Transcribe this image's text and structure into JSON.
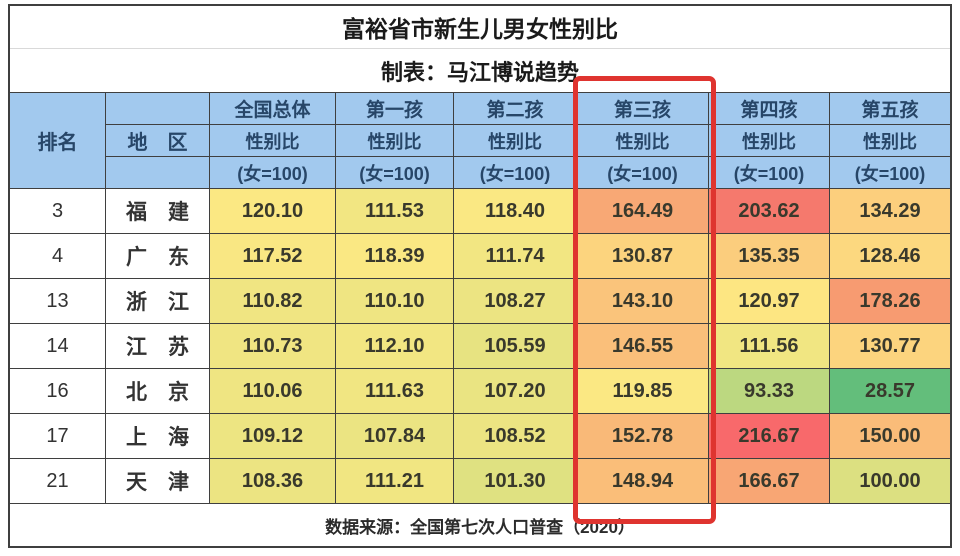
{
  "title": "富裕省市新生儿男女性别比",
  "subtitle": "制表：马江博说趋势",
  "source_note": "数据来源：全国第七次人口普查（2020）",
  "header": {
    "rank_label": "排名",
    "region_label": "地　区",
    "groups": [
      "全国总体",
      "第一孩",
      "第二孩",
      "第三孩",
      "第四孩",
      "第五孩"
    ],
    "sub_label": "性别比",
    "unit_label": "(女=100)"
  },
  "highlight": {
    "target_column": "第三孩",
    "box_color": "#df342f"
  },
  "theme": {
    "header_bg": "#a2c9ee",
    "header_text": "#274668",
    "grid_line": "#3f3f3f",
    "number_text": "#39392c",
    "scale_low_color": "#63be7b",
    "scale_mid_color": "#ffeb84",
    "scale_high_color": "#f8696b"
  },
  "rows": [
    {
      "rank": "3",
      "region": "福　建",
      "values": [
        "120.10",
        "111.53",
        "118.40",
        "164.49",
        "203.62",
        "134.29"
      ],
      "cell_colors": [
        "#fbe883",
        "#f2e682",
        "#fae883",
        "#f8a875",
        "#f5796d",
        "#fccf7d"
      ]
    },
    {
      "rank": "4",
      "region": "广　东",
      "values": [
        "117.52",
        "118.39",
        "111.74",
        "130.87",
        "135.35",
        "128.46"
      ],
      "cell_colors": [
        "#f9e783",
        "#fae883",
        "#f2e682",
        "#fcd47e",
        "#fbcd7d",
        "#fcd87f"
      ]
    },
    {
      "rank": "13",
      "region": "浙　江",
      "values": [
        "110.82",
        "110.10",
        "108.27",
        "143.10",
        "120.97",
        "178.26"
      ],
      "cell_colors": [
        "#f0e582",
        "#efe582",
        "#ece482",
        "#fac47b",
        "#fde682",
        "#f79b71"
      ]
    },
    {
      "rank": "14",
      "region": "江　苏",
      "values": [
        "110.73",
        "112.10",
        "105.59",
        "146.55",
        "111.56",
        "130.77"
      ],
      "cell_colors": [
        "#f0e582",
        "#f2e682",
        "#e7e381",
        "#fabf7a",
        "#f1e682",
        "#fcd47e"
      ]
    },
    {
      "rank": "16",
      "region": "北　京",
      "values": [
        "110.06",
        "111.63",
        "107.20",
        "119.85",
        "93.33",
        "28.57"
      ],
      "cell_colors": [
        "#efe582",
        "#f1e682",
        "#eae482",
        "#fbe883",
        "#bcd880",
        "#63be7b"
      ]
    },
    {
      "rank": "17",
      "region": "上　海",
      "values": [
        "109.12",
        "107.84",
        "108.52",
        "152.78",
        "216.67",
        "150.00"
      ],
      "cell_colors": [
        "#ede582",
        "#ebe482",
        "#ece482",
        "#f9b978",
        "#f8696b",
        "#fabc79"
      ]
    },
    {
      "rank": "21",
      "region": "天　津",
      "values": [
        "108.36",
        "111.21",
        "101.30",
        "148.94",
        "166.67",
        "100.00"
      ],
      "cell_colors": [
        "#ece482",
        "#f1e682",
        "#dfe181",
        "#fabe79",
        "#f8a674",
        "#dce081"
      ]
    }
  ],
  "chart_data": {
    "type": "table",
    "title": "富裕省市新生儿男女性别比",
    "subtitle": "制表：马江博说趋势",
    "columns": [
      "排名",
      "地区",
      "全国总体性别比(女=100)",
      "第一孩性别比(女=100)",
      "第二孩性别比(女=100)",
      "第三孩性别比(女=100)",
      "第四孩性别比(女=100)",
      "第五孩性别比(女=100)"
    ],
    "rows": [
      [
        3,
        "福建",
        120.1,
        111.53,
        118.4,
        164.49,
        203.62,
        134.29
      ],
      [
        4,
        "广东",
        117.52,
        118.39,
        111.74,
        130.87,
        135.35,
        128.46
      ],
      [
        13,
        "浙江",
        110.82,
        110.1,
        108.27,
        143.1,
        120.97,
        178.26
      ],
      [
        14,
        "江苏",
        110.73,
        112.1,
        105.59,
        146.55,
        111.56,
        130.77
      ],
      [
        16,
        "北京",
        110.06,
        111.63,
        107.2,
        119.85,
        93.33,
        28.57
      ],
      [
        17,
        "上海",
        109.12,
        107.84,
        108.52,
        152.78,
        216.67,
        150.0
      ],
      [
        21,
        "天津",
        108.36,
        111.21,
        101.3,
        148.94,
        166.67,
        100.0
      ]
    ],
    "highlighted_column": "第三孩性别比(女=100)",
    "cell_color_scale": {
      "low": "#63be7b",
      "mid": "#ffeb84",
      "high": "#f8696b",
      "meaning": "green=low ratio, red=high ratio"
    },
    "source": "数据来源：全国第七次人口普查（2020）"
  }
}
